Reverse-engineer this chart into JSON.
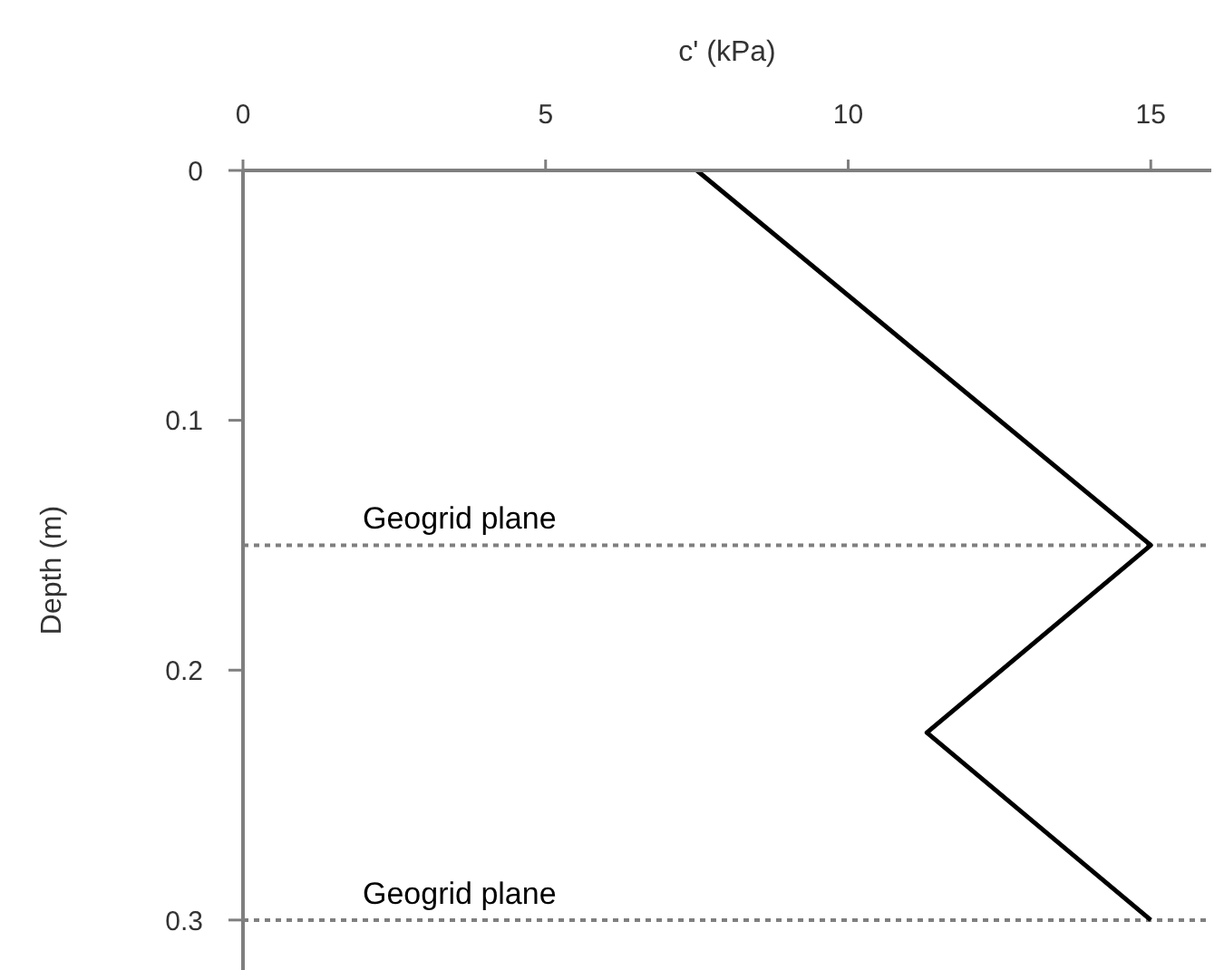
{
  "chart_data": {
    "type": "line",
    "xlabel": "c' (kPa)",
    "ylabel": "Depth (m)",
    "x": [
      7.5,
      15,
      11.3,
      15
    ],
    "values": [
      0,
      0.15,
      0.225,
      0.3
    ],
    "color": "#000000",
    "xlim": [
      0,
      16
    ],
    "xticks": [
      0,
      5,
      10,
      15
    ],
    "ylim": [
      0.32,
      0
    ],
    "yticks": [
      0,
      0.1,
      0.2,
      0.3
    ],
    "ref_lines": [
      {
        "axis": "y",
        "value": 0.15,
        "label": "Geogrid plane",
        "color": "#7f7f7f",
        "line_style": "dotted"
      },
      {
        "axis": "y",
        "value": 0.3,
        "label": "Geogrid plane",
        "color": "#7f7f7f",
        "line_style": "dotted"
      }
    ]
  }
}
